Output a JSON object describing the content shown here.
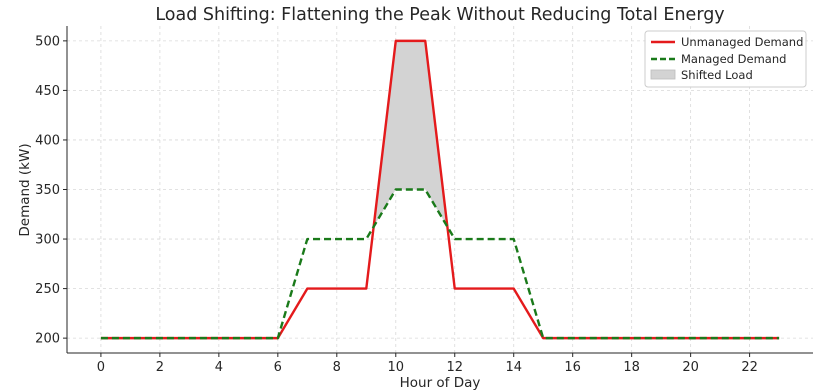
{
  "chart_data": {
    "type": "line",
    "title": "Load Shifting: Flattening the Peak Without Reducing Total Energy",
    "xlabel": "Hour of Day",
    "ylabel": "Demand (kW)",
    "x": [
      0,
      1,
      2,
      3,
      4,
      5,
      6,
      7,
      8,
      9,
      10,
      11,
      12,
      13,
      14,
      15,
      16,
      17,
      18,
      19,
      20,
      21,
      22,
      23
    ],
    "xlim": [
      -1.15,
      24.15
    ],
    "ylim": [
      185,
      515
    ],
    "xticks": [
      0,
      2,
      4,
      6,
      8,
      10,
      12,
      14,
      16,
      18,
      20,
      22
    ],
    "yticks": [
      200,
      250,
      300,
      350,
      400,
      450,
      500
    ],
    "grid": true,
    "legend_position": "top-right",
    "series": [
      {
        "name": "Unmanaged Demand",
        "color": "#e41a1c",
        "style": "solid",
        "values": [
          200,
          200,
          200,
          200,
          200,
          200,
          200,
          250,
          250,
          250,
          500,
          500,
          250,
          250,
          250,
          200,
          200,
          200,
          200,
          200,
          200,
          200,
          200,
          200
        ]
      },
      {
        "name": "Managed Demand",
        "color": "#1a7a1a",
        "style": "dashed",
        "values": [
          200,
          200,
          200,
          200,
          200,
          200,
          200,
          300,
          300,
          300,
          350,
          350,
          300,
          300,
          300,
          200,
          200,
          200,
          200,
          200,
          200,
          200,
          200,
          200
        ]
      }
    ],
    "fill_between": {
      "name": "Shifted Load",
      "color": "#d3d3d3",
      "between": [
        "Unmanaged Demand",
        "Managed Demand"
      ],
      "where": "Unmanaged Demand > Managed Demand"
    }
  }
}
